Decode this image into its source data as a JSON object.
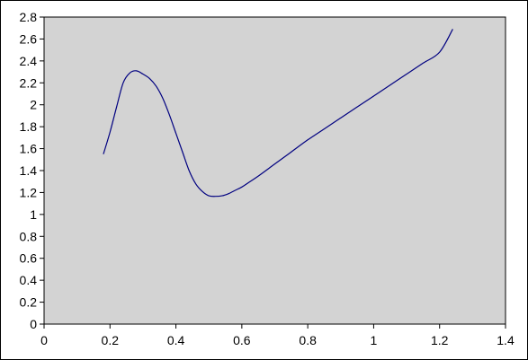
{
  "chart_data": {
    "type": "line",
    "title": "",
    "xlabel": "",
    "ylabel": "",
    "xlim": [
      0,
      1.4
    ],
    "ylim": [
      0,
      2.8
    ],
    "x_ticks": [
      "0",
      "0.2",
      "0.4",
      "0.6",
      "0.8",
      "1",
      "1.2",
      "1.4"
    ],
    "y_ticks": [
      "0",
      "0.2",
      "0.4",
      "0.6",
      "0.8",
      "1",
      "1.2",
      "1.4",
      "1.6",
      "1.8",
      "2",
      "2.2",
      "2.4",
      "2.6",
      "2.8"
    ],
    "grid": false,
    "legend": "none",
    "plot_background": "#d3d3d3",
    "line_color": "#000080",
    "series": [
      {
        "x": [
          0.18,
          0.2,
          0.22,
          0.24,
          0.26,
          0.28,
          0.3,
          0.32,
          0.34,
          0.36,
          0.38,
          0.4,
          0.42,
          0.44,
          0.46,
          0.48,
          0.5,
          0.52,
          0.54,
          0.56,
          0.58,
          0.6,
          0.62,
          0.65,
          0.7,
          0.75,
          0.8,
          0.85,
          0.9,
          0.95,
          1.0,
          1.05,
          1.1,
          1.15,
          1.2,
          1.24
        ],
        "y": [
          1.55,
          1.75,
          1.98,
          2.2,
          2.29,
          2.31,
          2.28,
          2.24,
          2.17,
          2.06,
          1.91,
          1.74,
          1.57,
          1.4,
          1.28,
          1.21,
          1.17,
          1.165,
          1.17,
          1.19,
          1.22,
          1.25,
          1.29,
          1.35,
          1.46,
          1.57,
          1.68,
          1.78,
          1.88,
          1.98,
          2.08,
          2.18,
          2.28,
          2.38,
          2.48,
          2.69
        ]
      }
    ]
  }
}
